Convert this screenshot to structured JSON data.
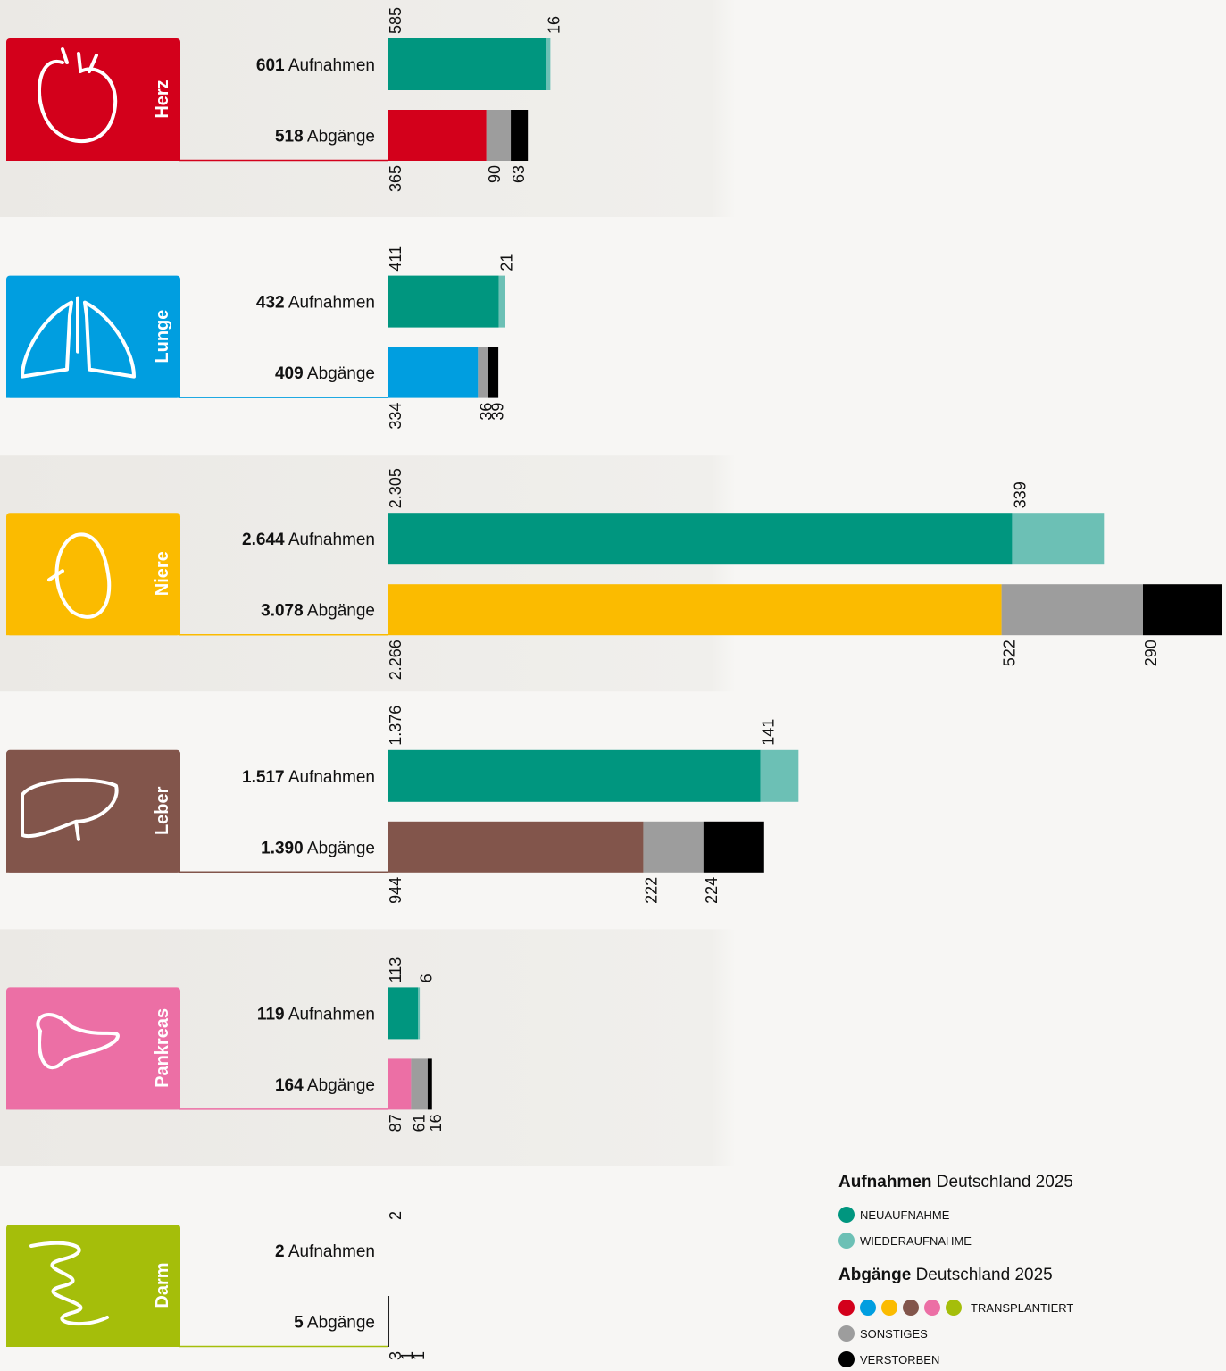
{
  "chart_data": {
    "type": "bar",
    "legend": {
      "admissions": {
        "title": "Aufnahmen",
        "subtitle": "Deutschland 2025",
        "items": [
          {
            "name": "NEUAUFNAHME",
            "color": "#00967f"
          },
          {
            "name": "WIEDERAUFNAHME",
            "color": "#6cc0b5"
          }
        ]
      },
      "departures": {
        "title": "Abgänge",
        "subtitle": "Deutschland 2025",
        "items": [
          {
            "name": "TRANSPLANTIERT"
          },
          {
            "name": "SONSTIGES",
            "color": "#9d9d9d"
          },
          {
            "name": "VERSTORBEN",
            "color": "#000000"
          }
        ]
      }
    },
    "organs": [
      {
        "name": "Herz",
        "color": "#d3001b",
        "admissions": {
          "total": 601,
          "total_label": "601",
          "values": [
            585,
            16
          ],
          "value_labels": [
            "585",
            "16"
          ]
        },
        "departures": {
          "total": 518,
          "total_label": "518",
          "values": [
            365,
            90,
            63
          ],
          "value_labels": [
            "365",
            "90",
            "63"
          ]
        }
      },
      {
        "name": "Lunge",
        "color": "#009ee0",
        "admissions": {
          "total": 432,
          "total_label": "432",
          "values": [
            411,
            21
          ],
          "value_labels": [
            "411",
            "21"
          ]
        },
        "departures": {
          "total": 409,
          "total_label": "409",
          "values": [
            334,
            36,
            39
          ],
          "value_labels": [
            "334",
            "36",
            "39"
          ]
        }
      },
      {
        "name": "Niere",
        "color": "#fbbb00",
        "admissions": {
          "total": 2644,
          "total_label": "2.644",
          "values": [
            2305,
            339
          ],
          "value_labels": [
            "2.305",
            "339"
          ]
        },
        "departures": {
          "total": 3078,
          "total_label": "3.078",
          "values": [
            2266,
            522,
            290
          ],
          "value_labels": [
            "2.266",
            "522",
            "290"
          ]
        }
      },
      {
        "name": "Leber",
        "color": "#82554b",
        "admissions": {
          "total": 1517,
          "total_label": "1.517",
          "values": [
            1376,
            141
          ],
          "value_labels": [
            "1.376",
            "141"
          ]
        },
        "departures": {
          "total": 1390,
          "total_label": "1.390",
          "values": [
            944,
            222,
            224
          ],
          "value_labels": [
            "944",
            "222",
            "224"
          ]
        }
      },
      {
        "name": "Pankreas",
        "color": "#ec6fa5",
        "admissions": {
          "total": 119,
          "total_label": "119",
          "values": [
            113,
            6
          ],
          "value_labels": [
            "113",
            "6"
          ]
        },
        "departures": {
          "total": 164,
          "total_label": "164",
          "values": [
            87,
            61,
            16
          ],
          "value_labels": [
            "87",
            "61",
            "16"
          ]
        }
      },
      {
        "name": "Darm",
        "color": "#a5be0a",
        "admissions": {
          "total": 2,
          "total_label": "2",
          "values": [
            2
          ],
          "value_labels": [
            "2"
          ]
        },
        "departures": {
          "total": 5,
          "total_label": "5",
          "values": [
            3,
            1,
            1
          ],
          "value_labels": [
            "3",
            "1",
            "1"
          ]
        }
      }
    ]
  }
}
